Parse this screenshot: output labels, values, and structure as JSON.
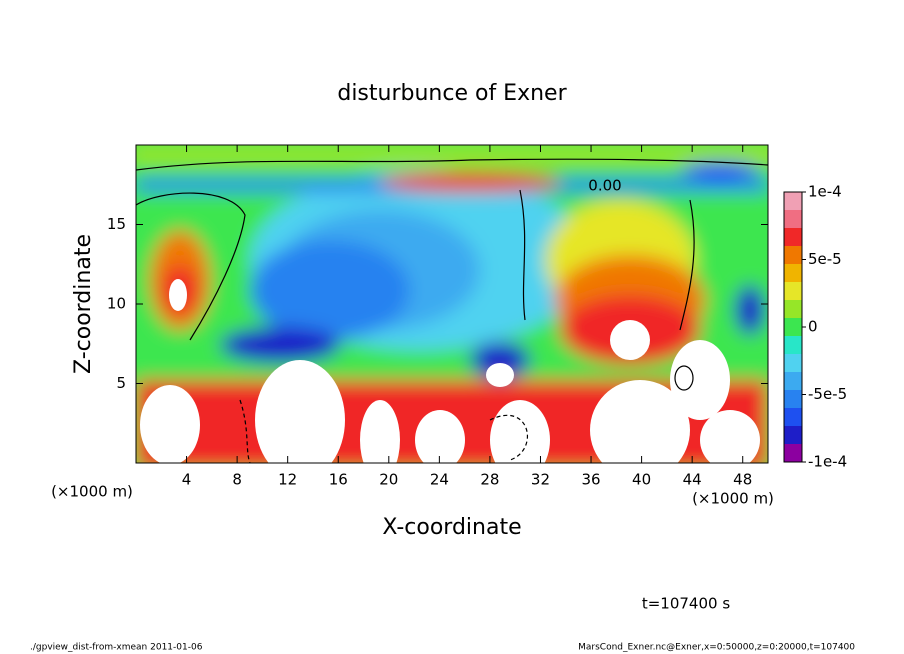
{
  "chart_data": {
    "type": "contour",
    "title": "disturbunce of Exner",
    "x_label": "X-coordinate",
    "y_label": "Z-coordinate",
    "x_unit": "(×1000 m)",
    "y_unit": "(×1000 m)",
    "time_label": "t=107400 s",
    "footer_left": "./gpview_dist-from-xmean  2011-01-06",
    "footer_right": "MarsCond_Exner.nc@Exner,x=0:50000,z=0:20000,t=107400",
    "contour_label": "0.00",
    "xlim": [
      0,
      50
    ],
    "xticks": [
      4,
      8,
      12,
      16,
      20,
      24,
      28,
      32,
      36,
      40,
      44,
      48
    ],
    "ylim": [
      0,
      20
    ],
    "yticks": [
      5,
      10,
      15
    ],
    "colorbar": {
      "lim": [
        -0.0001,
        0.0001
      ],
      "ticks": [
        {
          "value": 0.0001,
          "label": "1e-4"
        },
        {
          "value": 5e-05,
          "label": "5e-5"
        },
        0,
        {
          "value": -5e-05,
          "label": "-5e-5"
        },
        {
          "value": -0.0001,
          "label": "-1e-4"
        }
      ],
      "colors": [
        "#8c00a0",
        "#1e1ec8",
        "#1e50f0",
        "#2882f0",
        "#3caaf0",
        "#50d2f0",
        "#28e6c8",
        "#3ce650",
        "#96e628",
        "#e6e628",
        "#f0b400",
        "#f07800",
        "#f02828",
        "#f06e82",
        "#f0a0b4"
      ]
    }
  }
}
